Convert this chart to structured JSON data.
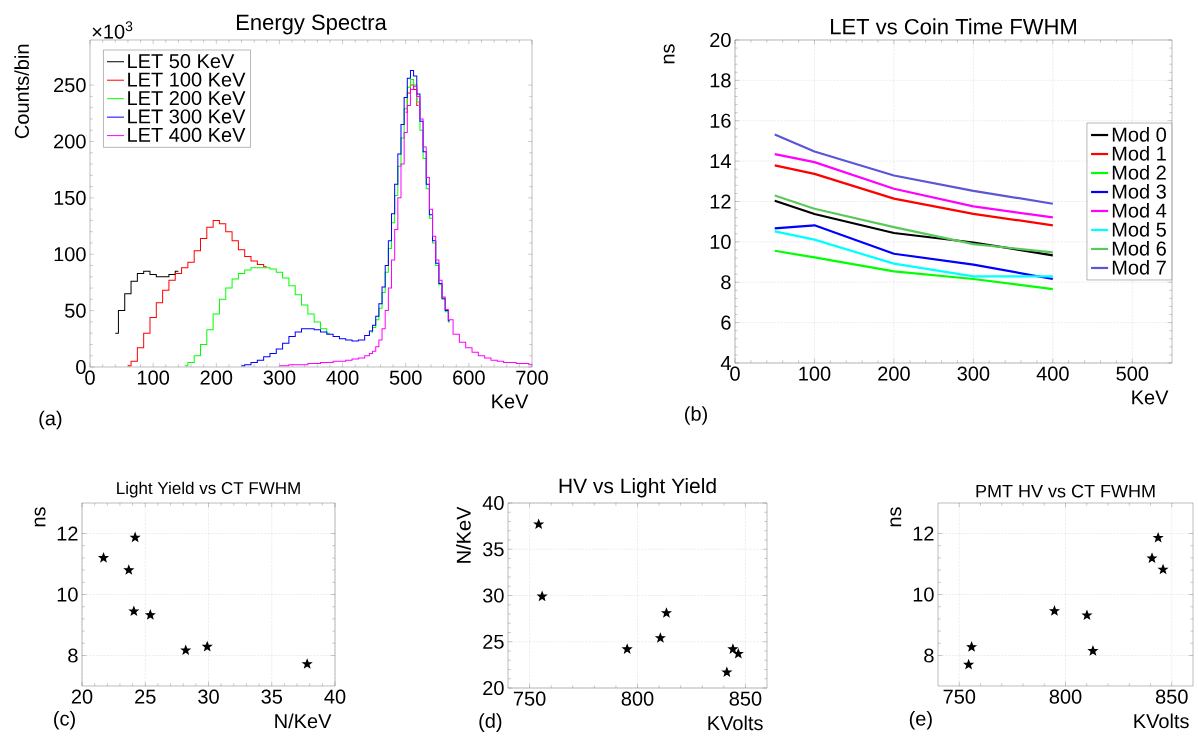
{
  "chart_data": [
    {
      "type": "step",
      "title": "Energy Spectra",
      "xlabel": "KeV",
      "ylabel": "Counts/bin",
      "annotations": [
        "×10$^{3}$",
        "(a)"
      ],
      "x": [
        40,
        50,
        60,
        70,
        80,
        90,
        100,
        110,
        120,
        130,
        140,
        150,
        160,
        170,
        180,
        190,
        200,
        210,
        220,
        230,
        240,
        250,
        260,
        270,
        280,
        290,
        300,
        310,
        320,
        330,
        340,
        350,
        360,
        370,
        380,
        390,
        400,
        410,
        420,
        430,
        440,
        445,
        450,
        455,
        460,
        465,
        470,
        475,
        480,
        485,
        490,
        495,
        500,
        505,
        510,
        515,
        520,
        525,
        530,
        535,
        540,
        545,
        550,
        555,
        560,
        565,
        570,
        580,
        590,
        600,
        610,
        620,
        630,
        640,
        650,
        660,
        670,
        680,
        690,
        700
      ],
      "series": [
        {
          "name": "LET  50 KeV",
          "color": "#000000",
          "values": [
            30,
            50,
            65,
            76,
            83,
            85,
            82,
            80,
            80,
            82,
            85,
            null,
            null,
            null,
            null,
            null,
            null,
            null,
            null,
            null,
            null,
            null,
            null,
            null,
            null,
            null,
            null,
            null,
            null,
            null,
            null,
            null,
            null,
            null,
            null,
            null,
            null,
            null,
            null,
            null,
            null,
            null,
            null,
            null,
            null,
            null,
            null,
            null,
            null,
            null,
            null,
            null,
            null,
            null,
            null,
            null,
            null,
            null,
            null,
            null,
            null,
            null,
            null,
            null,
            null,
            null,
            null,
            null,
            null,
            null,
            null,
            null,
            null,
            null,
            null,
            null,
            null,
            null,
            null,
            null
          ]
        },
        {
          "name": "LET 100 KeV",
          "color": "#ff0000",
          "values": [
            null,
            null,
            1,
            5,
            17,
            30,
            44,
            57,
            68,
            77,
            83,
            88,
            93,
            103,
            114,
            124,
            130,
            127,
            120,
            112,
            104,
            98,
            94,
            91,
            89,
            null,
            null,
            null,
            null,
            null,
            null,
            null,
            null,
            null,
            null,
            null,
            null,
            null,
            null,
            null,
            null,
            null,
            null,
            null,
            null,
            null,
            null,
            null,
            null,
            null,
            null,
            null,
            226,
            243,
            250,
            246,
            232,
            null,
            null,
            null,
            null,
            null,
            null,
            null,
            null,
            null,
            null,
            null,
            null,
            null,
            null,
            null,
            null,
            null,
            null,
            null,
            null,
            null,
            null,
            null
          ]
        },
        {
          "name": "LET 200 KeV",
          "color": "#00ff00",
          "values": [
            null,
            null,
            null,
            null,
            null,
            null,
            null,
            null,
            null,
            null,
            null,
            1,
            4,
            10,
            20,
            33,
            47,
            60,
            70,
            78,
            83,
            86,
            88,
            88,
            88,
            87,
            84,
            79,
            72,
            64,
            55,
            47,
            40,
            34,
            30,
            null,
            null,
            null,
            null,
            null,
            null,
            31,
            35,
            42,
            52,
            66,
            84,
            105,
            128,
            152,
            178,
            203,
            229,
            248,
            255,
            250,
            235,
            210,
            185,
            158,
            132,
            110,
            90,
            73,
            60,
            49,
            40,
            null,
            null,
            null,
            null,
            null,
            null,
            null,
            null,
            null,
            null,
            null,
            null,
            null
          ]
        },
        {
          "name": "LET 300 KeV",
          "color": "#0000ff",
          "values": [
            null,
            null,
            null,
            null,
            null,
            null,
            null,
            null,
            null,
            null,
            null,
            null,
            null,
            null,
            null,
            null,
            null,
            null,
            null,
            null,
            1,
            2,
            4,
            6,
            9,
            12,
            16,
            21,
            27,
            31,
            34,
            34,
            33,
            31,
            29,
            27,
            25,
            24,
            23,
            24,
            28,
            32,
            37,
            45,
            56,
            71,
            90,
            112,
            136,
            162,
            189,
            215,
            239,
            256,
            263,
            258,
            242,
            218,
            191,
            162,
            135,
            112,
            92,
            74,
            61,
            50,
            41,
            null,
            null,
            null,
            null,
            null,
            null,
            null,
            null,
            null,
            null,
            null,
            null,
            null
          ]
        },
        {
          "name": "LET 400 KeV",
          "color": "#ff00ff",
          "values": [
            null,
            null,
            null,
            null,
            null,
            null,
            null,
            null,
            null,
            null,
            null,
            null,
            null,
            null,
            null,
            null,
            null,
            null,
            null,
            null,
            null,
            null,
            null,
            null,
            null,
            null,
            1,
            1,
            2,
            2,
            2,
            3,
            3,
            4,
            4,
            5,
            5,
            6,
            7,
            8,
            10,
            12,
            14,
            18,
            24,
            34,
            50,
            70,
            95,
            122,
            150,
            180,
            208,
            232,
            246,
            249,
            240,
            220,
            195,
            168,
            140,
            116,
            95,
            77,
            62,
            51,
            42,
            29,
            22,
            17,
            13,
            10,
            8,
            6,
            5,
            4,
            4,
            3,
            3,
            2
          ]
        }
      ],
      "xlim": [
        0,
        700
      ],
      "ylim": [
        0,
        290
      ],
      "xticks": [
        0,
        100,
        200,
        300,
        400,
        500,
        600,
        700
      ],
      "yticks": [
        0,
        50,
        100,
        150,
        200,
        250
      ],
      "grid": false,
      "legend": "top left"
    },
    {
      "type": "line",
      "title": "LET vs Coin Time FWHM",
      "xlabel": "KeV",
      "ylabel": "ns",
      "annotations": [
        "(b)"
      ],
      "x": [
        50,
        100,
        200,
        300,
        400
      ],
      "series": [
        {
          "name": "Mod 0",
          "color": "#000000",
          "values": [
            12.04,
            11.38,
            10.44,
            9.97,
            9.33
          ]
        },
        {
          "name": "Mod 1",
          "color": "#ff0000",
          "values": [
            13.79,
            13.37,
            12.14,
            11.39,
            10.82
          ]
        },
        {
          "name": "Mod 2",
          "color": "#00ff00",
          "values": [
            9.56,
            9.23,
            8.54,
            8.16,
            7.66
          ]
        },
        {
          "name": "Mod 3",
          "color": "#0000ff",
          "values": [
            10.67,
            10.82,
            9.41,
            8.87,
            8.16
          ]
        },
        {
          "name": "Mod 4",
          "color": "#ff00ff",
          "values": [
            14.35,
            13.95,
            12.63,
            11.76,
            11.21
          ]
        },
        {
          "name": "Mod 5",
          "color": "#00ffff",
          "values": [
            10.52,
            10.11,
            8.92,
            8.29,
            8.29
          ]
        },
        {
          "name": "Mod 6",
          "color": "#5bc85b",
          "values": [
            12.3,
            11.64,
            10.73,
            9.89,
            9.48
          ]
        },
        {
          "name": "Mod 7",
          "color": "#5a56d6",
          "values": [
            15.32,
            14.48,
            13.29,
            12.53,
            11.89
          ]
        }
      ],
      "xlim": [
        0,
        550
      ],
      "ylim": [
        4,
        20
      ],
      "xticks": [
        0,
        100,
        200,
        300,
        400,
        500
      ],
      "yticks": [
        4,
        6,
        8,
        10,
        12,
        14,
        16,
        18,
        20
      ],
      "grid": true,
      "legend": "right"
    },
    {
      "type": "scatter",
      "title": "Light Yield vs CT FWHM",
      "xlabel": "N/KeV",
      "ylabel": "ns",
      "annotations": [
        "(c)"
      ],
      "x": [
        21.7,
        24.2,
        23.7,
        24.1,
        25.4,
        28.2,
        29.9,
        37.8
      ],
      "values": [
        11.2,
        11.87,
        10.8,
        9.45,
        9.33,
        8.17,
        8.29,
        7.72
      ],
      "color": "#000000",
      "marker": "star",
      "xlim": [
        20,
        40
      ],
      "ylim": [
        7,
        13
      ],
      "xticks": [
        20,
        25,
        30,
        35,
        40
      ],
      "yticks": [
        8,
        10,
        12
      ],
      "grid": true
    },
    {
      "type": "scatter",
      "title": "HV vs Light Yield",
      "xlabel": "KVolts",
      "ylabel": "N/KeV",
      "annotations": [
        "(d)"
      ],
      "x": [
        754.2,
        755.8,
        795.2,
        810.6,
        813.4,
        841.4,
        844.2,
        846.7
      ],
      "values": [
        37.7,
        29.9,
        24.2,
        25.4,
        28.1,
        21.7,
        24.2,
        23.7
      ],
      "color": "#000000",
      "marker": "star",
      "xlim": [
        740,
        860
      ],
      "ylim": [
        20,
        40
      ],
      "xticks": [
        750,
        800,
        850
      ],
      "yticks": [
        20,
        25,
        30,
        35,
        40
      ],
      "grid": true
    },
    {
      "type": "scatter",
      "title": "PMT HV vs CT FWHM",
      "xlabel": "KVolts",
      "ylabel": "ns",
      "annotations": [
        "(e)"
      ],
      "x": [
        754.4,
        755.8,
        794.8,
        810.1,
        812.9,
        840.7,
        843.6,
        845.9
      ],
      "values": [
        7.7,
        8.28,
        9.46,
        9.32,
        8.15,
        11.19,
        11.86,
        10.82
      ],
      "color": "#000000",
      "marker": "star",
      "xlim": [
        740,
        860
      ],
      "ylim": [
        7,
        13
      ],
      "xticks": [
        750,
        800,
        850
      ],
      "yticks": [
        8,
        10,
        12
      ],
      "grid": true
    }
  ]
}
